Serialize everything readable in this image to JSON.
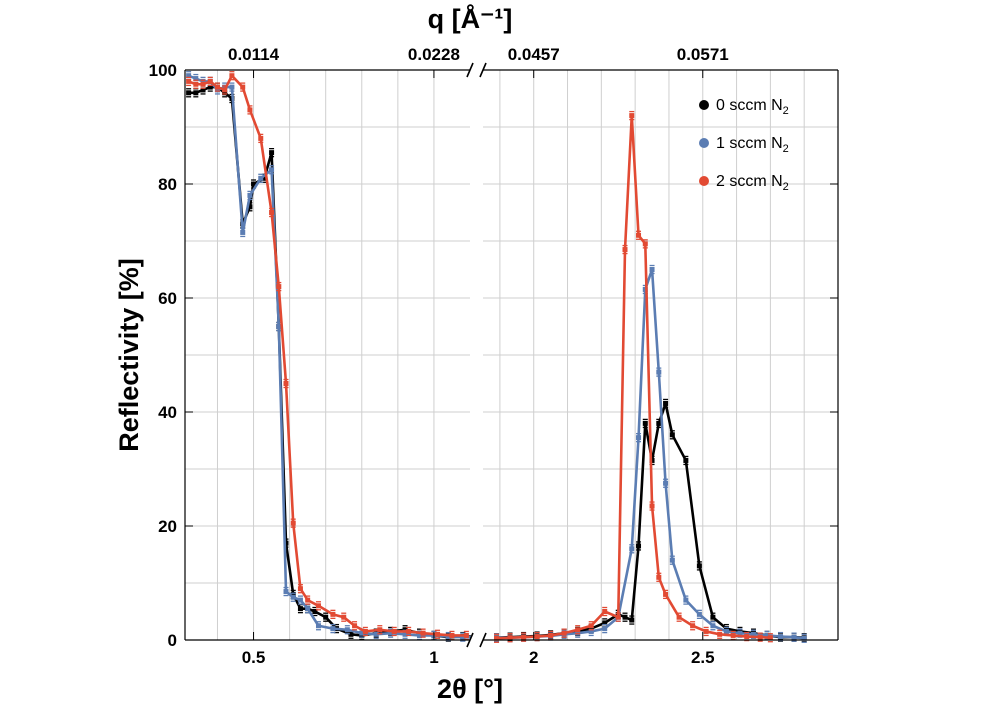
{
  "chart_data": {
    "type": "line",
    "title": "",
    "xlabel": "2θ [°]",
    "ylabel": "Reflectivity [%]",
    "top_axis_label": "q [Å⁻¹]",
    "ylim": [
      0,
      100
    ],
    "y_ticks": [
      0,
      20,
      40,
      60,
      80,
      100
    ],
    "x_break": true,
    "panels": [
      {
        "xlim": [
          0.31,
          1.1
        ],
        "x_ticks": [
          {
            "value": 0.5,
            "label": "0.5"
          },
          {
            "value": 1.0,
            "label": "1"
          }
        ],
        "top_ticks": [
          {
            "value": 0.5,
            "label": "0.0114"
          },
          {
            "value": 1.0,
            "label": "0.0228"
          }
        ]
      },
      {
        "xlim": [
          1.85,
          2.9
        ],
        "x_ticks": [
          {
            "value": 2.0,
            "label": "2"
          },
          {
            "value": 2.5,
            "label": "2.5"
          }
        ],
        "top_ticks": [
          {
            "value": 2.0,
            "label": "0.0457"
          },
          {
            "value": 2.5,
            "label": "0.0571"
          }
        ]
      }
    ],
    "legend_position": "top-right",
    "series": [
      {
        "name": "0 sccm N",
        "subscript": "2",
        "color": "#000000",
        "x": [
          0.32,
          0.34,
          0.36,
          0.38,
          0.4,
          0.42,
          0.44,
          0.47,
          0.49,
          0.5,
          0.53,
          0.55,
          0.57,
          0.59,
          0.61,
          0.63,
          0.65,
          0.67,
          0.7,
          0.73,
          0.77,
          0.8,
          0.84,
          0.88,
          0.92,
          0.96,
          1.0,
          1.04,
          1.08,
          1.12,
          1.89,
          1.93,
          1.97,
          2.01,
          2.05,
          2.09,
          2.13,
          2.17,
          2.21,
          2.25,
          2.27,
          2.29,
          2.31,
          2.33,
          2.35,
          2.37,
          2.39,
          2.41,
          2.45,
          2.49,
          2.53,
          2.57,
          2.61,
          2.65,
          2.69,
          2.73,
          2.77,
          2.8
        ],
        "y": [
          96,
          96,
          96.5,
          97,
          97,
          96,
          95,
          73,
          76,
          80,
          81,
          85.5,
          55,
          17,
          8,
          5.5,
          5.5,
          5,
          4,
          2,
          1,
          0.8,
          1.2,
          1.5,
          1.8,
          1.2,
          0.8,
          0.5,
          0.6,
          0.6,
          0.4,
          0.5,
          0.6,
          0.7,
          0.9,
          1.2,
          1.5,
          2.0,
          3.0,
          4.5,
          4.0,
          3.5,
          16.5,
          38,
          31.5,
          38,
          41.5,
          36,
          31.5,
          13,
          4,
          2,
          1.5,
          1.2,
          0.8,
          0.5,
          0.5,
          0.4
        ]
      },
      {
        "name": "1 sccm N",
        "subscript": "2",
        "color": "#5b7db3",
        "x": [
          0.32,
          0.34,
          0.36,
          0.38,
          0.4,
          0.42,
          0.44,
          0.47,
          0.49,
          0.52,
          0.55,
          0.57,
          0.59,
          0.61,
          0.63,
          0.65,
          0.68,
          0.72,
          0.76,
          0.8,
          0.84,
          0.88,
          0.92,
          0.96,
          1.0,
          1.04,
          1.08,
          1.12,
          1.89,
          1.93,
          1.97,
          2.01,
          2.05,
          2.09,
          2.13,
          2.17,
          2.21,
          2.25,
          2.29,
          2.31,
          2.33,
          2.35,
          2.37,
          2.39,
          2.41,
          2.45,
          2.49,
          2.53,
          2.57,
          2.61,
          2.65,
          2.69,
          2.73,
          2.77,
          2.8
        ],
        "y": [
          99,
          98.5,
          98,
          98,
          96.5,
          97,
          97,
          71.5,
          78,
          81,
          82.5,
          55,
          8.5,
          7.5,
          7,
          5.5,
          2.5,
          2,
          1.8,
          1.2,
          1.0,
          1.2,
          1.0,
          0.8,
          0.8,
          0.6,
          0.5,
          0.5,
          0.4,
          0.4,
          0.5,
          0.6,
          0.7,
          1.0,
          1.2,
          1.5,
          2.0,
          4.0,
          16,
          35.5,
          61.5,
          65,
          47,
          27.5,
          14,
          7,
          4.5,
          2.5,
          1.5,
          1.2,
          1.0,
          0.8,
          0.6,
          0.5,
          0.3
        ]
      },
      {
        "name": "2 sccm N",
        "subscript": "2",
        "color": "#e24a33",
        "x": [
          0.32,
          0.34,
          0.36,
          0.38,
          0.4,
          0.42,
          0.44,
          0.47,
          0.49,
          0.52,
          0.55,
          0.57,
          0.59,
          0.61,
          0.63,
          0.65,
          0.68,
          0.72,
          0.75,
          0.78,
          0.81,
          0.85,
          0.89,
          0.93,
          0.97,
          1.01,
          1.05,
          1.09,
          1.89,
          1.93,
          1.97,
          2.01,
          2.05,
          2.09,
          2.13,
          2.17,
          2.21,
          2.25,
          2.27,
          2.29,
          2.31,
          2.33,
          2.35,
          2.37,
          2.39,
          2.43,
          2.47,
          2.51,
          2.55,
          2.59,
          2.63,
          2.67,
          2.7
        ],
        "y": [
          98,
          97.5,
          97.5,
          98,
          97,
          96.5,
          99,
          97,
          93,
          88,
          75,
          62,
          45,
          20.5,
          9,
          7,
          6,
          4.5,
          4,
          2.5,
          1.5,
          1.8,
          1.5,
          1.5,
          1.2,
          1.0,
          0.8,
          0.8,
          0.3,
          0.4,
          0.5,
          0.6,
          0.8,
          1.2,
          1.8,
          2.5,
          5.0,
          4.0,
          68.5,
          92,
          71,
          69.5,
          23.5,
          11,
          8,
          4,
          2.5,
          1.5,
          1.0,
          0.8,
          0.6,
          0.5,
          0.4
        ]
      }
    ]
  }
}
